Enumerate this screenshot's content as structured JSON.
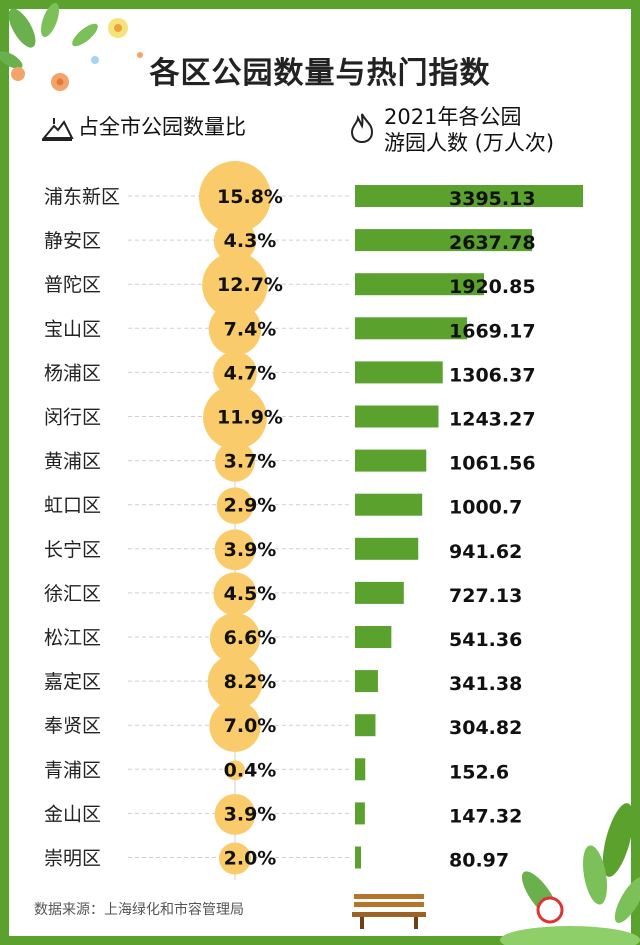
{
  "title": "各区公园数量与热门指数",
  "left_header": "占全市公园数量比",
  "right_header_line1": "2021年各公园",
  "right_header_line2": "游园人数 (万人次)",
  "source": "数据来源：上海绿化和市容管理局",
  "colors": {
    "border": "#5aa12d",
    "bar": "#5aa12d",
    "bubble": "#f9cb6b",
    "divider": "#cfcfcf"
  },
  "chart_data": {
    "type": "bar",
    "categories": [
      "浦东新区",
      "静安区",
      "普陀区",
      "宝山区",
      "杨浦区",
      "闵行区",
      "黄浦区",
      "虹口区",
      "长宁区",
      "徐汇区",
      "松江区",
      "嘉定区",
      "奉贤区",
      "青浦区",
      "金山区",
      "崇明区"
    ],
    "share_labels": [
      "15.8%",
      "4.3%",
      "12.7%",
      "7.4%",
      "4.7%",
      "11.9%",
      "3.7%",
      "2.9%",
      "3.9%",
      "4.5%",
      "6.6%",
      "8.2%",
      "7.0%",
      "0.4%",
      "3.9%",
      "2.0%"
    ],
    "share_values": [
      15.8,
      4.3,
      12.7,
      7.4,
      4.7,
      11.9,
      3.7,
      2.9,
      3.9,
      4.5,
      6.6,
      8.2,
      7.0,
      0.4,
      3.9,
      2.0
    ],
    "visitor_labels": [
      "3395.13",
      "2637.78",
      "1920.85",
      "1669.17",
      "1306.37",
      "1243.27",
      "1061.56",
      "1000.7",
      "941.62",
      "727.13",
      "541.36",
      "341.38",
      "304.82",
      "152.6",
      "147.32",
      "80.97"
    ],
    "visitor_values": [
      3395.13,
      2637.78,
      1920.85,
      1669.17,
      1306.37,
      1243.27,
      1061.56,
      1000.7,
      941.62,
      727.13,
      541.36,
      341.38,
      304.82,
      152.6,
      147.32,
      80.97
    ]
  }
}
